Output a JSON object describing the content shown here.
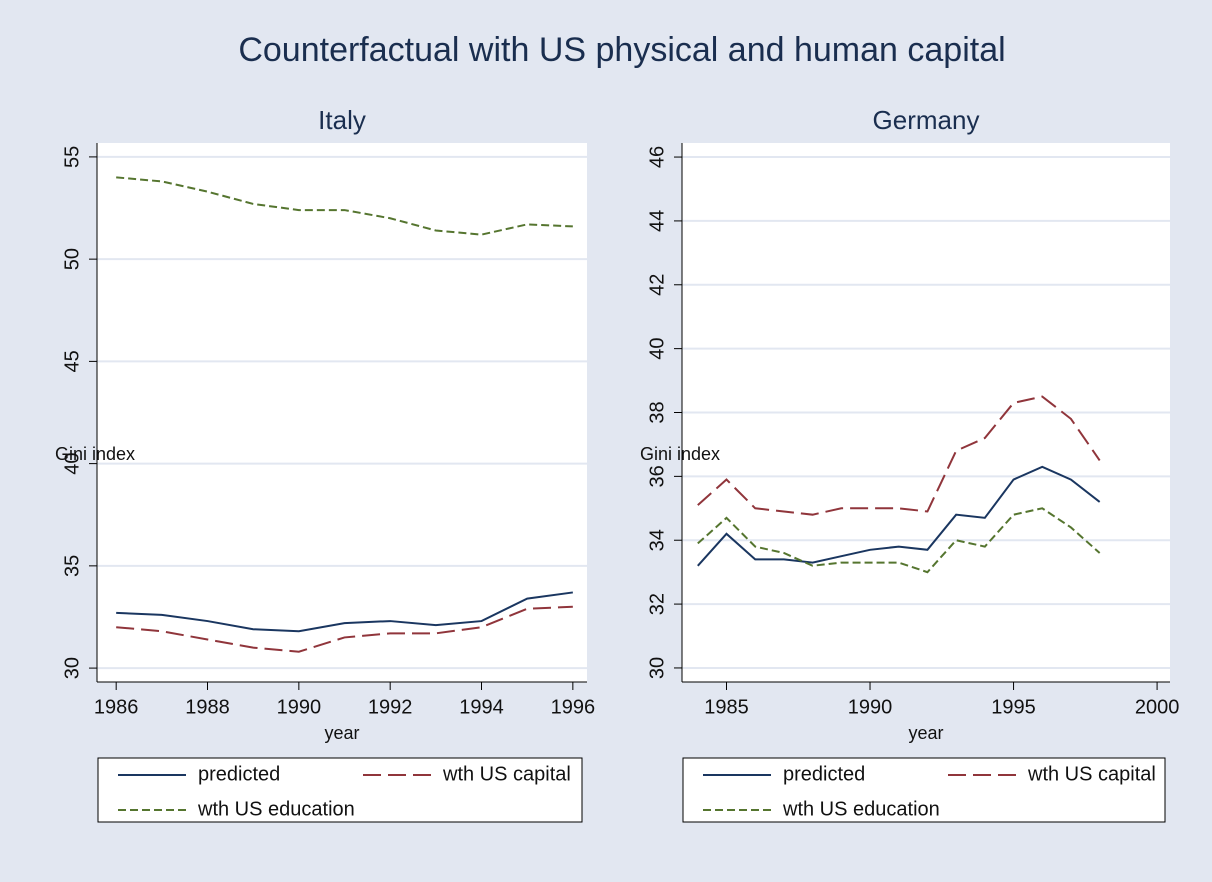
{
  "title": "Counterfactual with US physical and human capital",
  "chart_data": [
    {
      "type": "line",
      "title": "Italy",
      "x_label": "year",
      "y_label": "Gini index",
      "x": [
        1986,
        1987,
        1988,
        1989,
        1990,
        1991,
        1992,
        1993,
        1994,
        1995,
        1996
      ],
      "series": [
        {
          "name": "predicted",
          "color": "#1a3660",
          "dash": "none",
          "values": [
            32.7,
            32.6,
            32.3,
            31.9,
            31.8,
            32.2,
            32.3,
            32.1,
            32.3,
            33.4,
            33.7
          ]
        },
        {
          "name": "wth US capital",
          "color": "#90353b",
          "dash": "18,7",
          "values": [
            32.0,
            31.8,
            31.4,
            31.0,
            30.8,
            31.5,
            31.7,
            31.7,
            32.0,
            32.9,
            33.0
          ]
        },
        {
          "name": "wth US education",
          "color": "#55752f",
          "dash": "8,4",
          "values": [
            54.0,
            53.8,
            53.3,
            52.7,
            52.4,
            52.4,
            52.0,
            51.4,
            51.2,
            51.7,
            51.6
          ]
        }
      ],
      "xlim": [
        1985.58,
        1996.31
      ],
      "xticks": [
        1986,
        1988,
        1990,
        1992,
        1994,
        1996
      ],
      "ylim": [
        29.32,
        55.68
      ],
      "yticks": [
        30,
        35,
        40,
        45,
        50,
        55
      ],
      "grid": true,
      "legend": "bottom"
    },
    {
      "type": "line",
      "title": "Germany",
      "x_label": "year",
      "y_label": "Gini index",
      "x": [
        1984,
        1985,
        1986,
        1987,
        1988,
        1989,
        1990,
        1991,
        1992,
        1993,
        1994,
        1995,
        1996,
        1997,
        1998
      ],
      "series": [
        {
          "name": "predicted",
          "color": "#1a3660",
          "dash": "none",
          "values": [
            33.2,
            34.2,
            33.4,
            33.4,
            33.3,
            33.5,
            33.7,
            33.8,
            33.7,
            34.8,
            34.7,
            35.9,
            36.3,
            35.9,
            35.2
          ]
        },
        {
          "name": "wth US capital",
          "color": "#90353b",
          "dash": "18,7",
          "values": [
            35.1,
            35.9,
            35.0,
            34.9,
            34.8,
            35.0,
            35.0,
            35.0,
            34.9,
            36.8,
            37.2,
            38.3,
            38.5,
            37.8,
            36.5
          ]
        },
        {
          "name": "wth US education",
          "color": "#55752f",
          "dash": "8,4",
          "values": [
            33.9,
            34.7,
            33.8,
            33.6,
            33.2,
            33.3,
            33.3,
            33.3,
            33.0,
            34.0,
            33.8,
            34.8,
            35.0,
            34.4,
            33.6
          ]
        }
      ],
      "xlim": [
        1983.45,
        2000.45
      ],
      "xticks": [
        1985,
        1990,
        1995,
        2000
      ],
      "ylim": [
        29.56,
        46.44
      ],
      "yticks": [
        30,
        32,
        34,
        36,
        38,
        40,
        42,
        44,
        46
      ],
      "grid": true,
      "legend": "bottom"
    }
  ]
}
